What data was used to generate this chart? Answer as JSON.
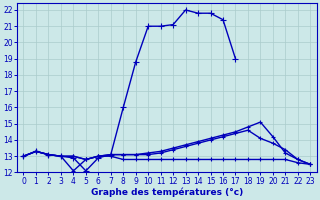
{
  "xlabel": "Graphe des températures (°c)",
  "background_color": "#cce8e8",
  "grid_color": "#aacccc",
  "line_color": "#0000bb",
  "xlim": [
    -0.5,
    23.5
  ],
  "ylim": [
    12,
    22.4
  ],
  "xticks": [
    0,
    1,
    2,
    3,
    4,
    5,
    6,
    7,
    8,
    9,
    10,
    11,
    12,
    13,
    14,
    15,
    16,
    17,
    18,
    19,
    20,
    21,
    22,
    23
  ],
  "yticks": [
    12,
    13,
    14,
    15,
    16,
    17,
    18,
    19,
    20,
    21,
    22
  ],
  "series": [
    {
      "x": [
        0,
        1,
        2,
        3,
        4,
        5,
        6,
        7,
        8,
        9,
        10,
        11,
        12,
        13,
        14,
        15,
        16,
        17
      ],
      "y": [
        13.0,
        13.3,
        13.1,
        13.0,
        12.9,
        12.1,
        12.9,
        13.1,
        16.0,
        18.8,
        21.0,
        21.0,
        21.1,
        22.0,
        21.8,
        21.8,
        21.4,
        19.0
      ],
      "linestyle": "-",
      "marker": "+",
      "markersize": 4,
      "linewidth": 1.0
    },
    {
      "x": [
        0,
        1,
        2,
        3,
        4,
        5,
        6,
        7,
        8,
        9,
        10,
        11,
        12,
        13,
        14,
        15,
        16,
        17,
        18,
        19,
        20,
        21,
        22,
        23
      ],
      "y": [
        13.0,
        13.3,
        13.1,
        13.0,
        13.0,
        12.8,
        13.0,
        13.1,
        13.1,
        13.1,
        13.2,
        13.3,
        13.5,
        13.7,
        13.9,
        14.1,
        14.3,
        14.5,
        14.8,
        15.1,
        14.2,
        13.2,
        12.8,
        12.5
      ],
      "linestyle": "-",
      "marker": "+",
      "markersize": 3,
      "linewidth": 1.0
    },
    {
      "x": [
        0,
        1,
        2,
        3,
        4,
        5,
        6,
        7,
        8,
        9,
        10,
        11,
        12,
        13,
        14,
        15,
        16,
        17,
        18,
        19,
        20,
        21,
        22,
        23
      ],
      "y": [
        13.0,
        13.3,
        13.1,
        13.0,
        13.0,
        12.8,
        13.0,
        13.1,
        13.1,
        13.1,
        13.1,
        13.2,
        13.4,
        13.6,
        13.8,
        14.0,
        14.2,
        14.4,
        14.6,
        14.1,
        13.8,
        13.4,
        12.8,
        12.5
      ],
      "linestyle": "-",
      "marker": "+",
      "markersize": 3,
      "linewidth": 1.0
    },
    {
      "x": [
        0,
        1,
        2,
        3,
        4,
        5,
        6,
        7,
        8,
        9,
        10,
        11,
        12,
        13,
        14,
        15,
        16,
        17,
        18,
        19,
        20,
        21,
        22,
        23
      ],
      "y": [
        13.0,
        13.3,
        13.1,
        13.0,
        12.1,
        12.8,
        13.0,
        13.0,
        12.8,
        12.8,
        12.8,
        12.8,
        12.8,
        12.8,
        12.8,
        12.8,
        12.8,
        12.8,
        12.8,
        12.8,
        12.8,
        12.8,
        12.6,
        12.5
      ],
      "linestyle": "-",
      "marker": "+",
      "markersize": 3,
      "linewidth": 1.0
    }
  ]
}
